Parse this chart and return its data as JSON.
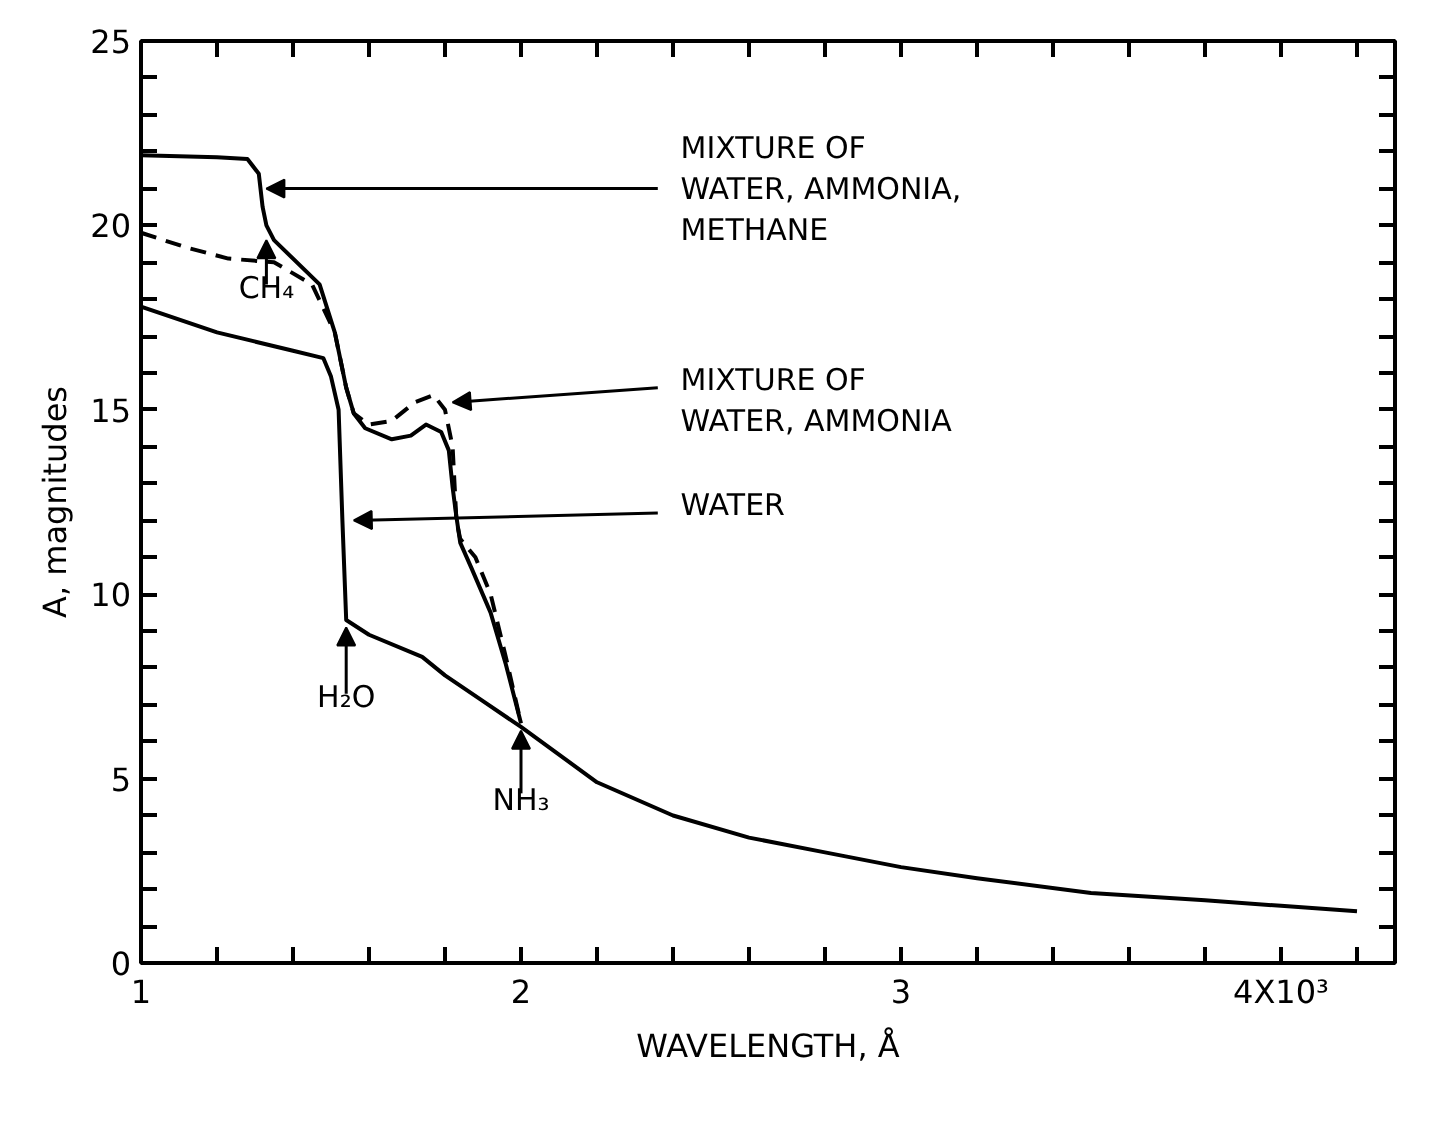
{
  "chart_data": {
    "type": "line",
    "xlabel": "WAVELENGTH, Å",
    "ylabel": "A, magnitudes",
    "xlim": [
      1,
      4.3
    ],
    "ylim": [
      0,
      25
    ],
    "xticks": [
      1,
      {
        "value": 1.2,
        "label": null
      },
      {
        "value": 1.4,
        "label": null
      },
      {
        "value": 1.6,
        "label": null
      },
      {
        "value": 1.8,
        "label": null
      },
      2,
      {
        "value": 2.2,
        "label": null
      },
      {
        "value": 2.4,
        "label": null
      },
      {
        "value": 2.6,
        "label": null
      },
      {
        "value": 2.8,
        "label": null
      },
      3,
      {
        "value": 3.2,
        "label": null
      },
      {
        "value": 3.4,
        "label": null
      },
      {
        "value": 3.6,
        "label": null
      },
      {
        "value": 3.8,
        "label": null
      },
      {
        "value": 4,
        "label": "4X10³"
      },
      {
        "value": 4.2,
        "label": null
      }
    ],
    "yticks": [
      0,
      {
        "value": 1,
        "label": null
      },
      {
        "value": 2,
        "label": null
      },
      {
        "value": 3,
        "label": null
      },
      {
        "value": 4,
        "label": null
      },
      5,
      {
        "value": 6,
        "label": null
      },
      {
        "value": 7,
        "label": null
      },
      {
        "value": 8,
        "label": null
      },
      {
        "value": 9,
        "label": null
      },
      10,
      {
        "value": 11,
        "label": null
      },
      {
        "value": 12,
        "label": null
      },
      {
        "value": 13,
        "label": null
      },
      {
        "value": 14,
        "label": null
      },
      15,
      {
        "value": 16,
        "label": null
      },
      {
        "value": 17,
        "label": null
      },
      {
        "value": 18,
        "label": null
      },
      {
        "value": 19,
        "label": null
      },
      20,
      {
        "value": 21,
        "label": null
      },
      {
        "value": 22,
        "label": null
      },
      {
        "value": 23,
        "label": null
      },
      {
        "value": 24,
        "label": null
      },
      25
    ],
    "grid": false,
    "marker": "none",
    "series": [
      {
        "color": "#000000",
        "line_style": "solid",
        "x": [
          1.0,
          1.2,
          1.28,
          1.31,
          1.32,
          1.33,
          1.35,
          1.47,
          1.51,
          1.54,
          1.56,
          1.59,
          1.66,
          1.71,
          1.75,
          1.79,
          1.81,
          1.82,
          1.83,
          1.84,
          1.87,
          1.92,
          1.96,
          2.0
        ],
        "values": [
          21.9,
          21.85,
          21.8,
          21.4,
          20.5,
          20.0,
          19.6,
          18.4,
          17.1,
          15.6,
          14.9,
          14.5,
          14.2,
          14.3,
          14.6,
          14.4,
          13.9,
          12.9,
          12.1,
          11.4,
          10.7,
          9.5,
          8.1,
          6.5
        ]
      },
      {
        "color": "#000000",
        "line_style": "dashed",
        "x": [
          1.0,
          1.12,
          1.23,
          1.35,
          1.45,
          1.51,
          1.54,
          1.56,
          1.6,
          1.66,
          1.72,
          1.77,
          1.8,
          1.82,
          1.83,
          1.84,
          1.88,
          1.92,
          1.96,
          2.0
        ],
        "values": [
          19.8,
          19.4,
          19.1,
          19.0,
          18.4,
          17.1,
          15.6,
          14.9,
          14.6,
          14.7,
          15.2,
          15.4,
          15.0,
          14.0,
          12.0,
          11.5,
          11.0,
          10.0,
          8.3,
          6.5
        ]
      },
      {
        "color": "#000000",
        "line_style": "solid",
        "x": [
          1.0,
          1.2,
          1.4,
          1.48,
          1.5,
          1.52,
          1.53,
          1.54,
          1.6,
          1.74,
          1.8,
          1.9,
          2.0,
          2.2,
          2.4,
          2.6,
          2.8,
          3.0,
          3.2,
          3.5,
          3.8,
          4.0,
          4.2
        ],
        "values": [
          17.8,
          17.1,
          16.6,
          16.4,
          15.9,
          15.0,
          12.0,
          9.3,
          8.9,
          8.3,
          7.8,
          7.1,
          6.4,
          4.9,
          4.0,
          3.4,
          3.0,
          2.6,
          2.3,
          1.9,
          1.7,
          1.55,
          1.4
        ]
      }
    ],
    "annotations": [
      {
        "text": "MIXTURE OF\nWATER, AMMONIA,\nMETHANE",
        "x": 1.33,
        "y": 21.0
      },
      {
        "text": "MIXTURE OF\nWATER, AMMONIA",
        "x": 1.82,
        "y": 15.2
      },
      {
        "text": "WATER",
        "x": 1.56,
        "y": 12.0
      },
      {
        "text": "CH₄",
        "x": 1.33,
        "y": 19.6
      },
      {
        "text": "H₂O",
        "x": 1.54,
        "y": 9.1
      },
      {
        "text": "NH₃",
        "x": 2.0,
        "y": 6.3
      }
    ]
  }
}
